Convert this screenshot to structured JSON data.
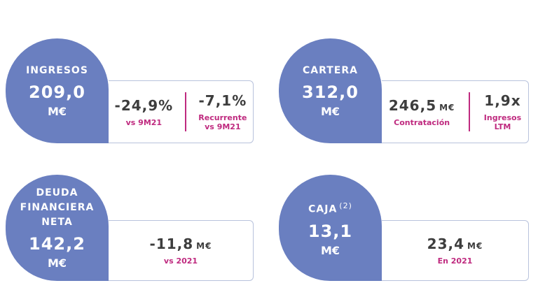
{
  "cards": [
    {
      "title": "INGRESOS",
      "value": "209,0",
      "unit": "M€",
      "metrics": [
        {
          "value": "-24,9%",
          "label": "vs 9M21"
        },
        {
          "value": "-7,1%",
          "label": "Recurrente\nvs 9M21"
        }
      ]
    },
    {
      "title": "CARTERA",
      "value": "312,0",
      "unit": "M€",
      "metrics": [
        {
          "value": "246,5",
          "unit": "M€",
          "label": "Contratación"
        },
        {
          "value": "1,9x",
          "label": "Ingresos\nLTM"
        }
      ]
    },
    {
      "title": "DEUDA\nFINANCIERA\nNETA",
      "value": "142,2",
      "unit": "M€",
      "metrics": [
        {
          "value": "-11,8",
          "unit": "M€",
          "label": "vs 2021"
        }
      ]
    },
    {
      "title": "CAJA",
      "note": "(2)",
      "value": "13,1",
      "unit": "M€",
      "metrics": [
        {
          "value": "23,4",
          "unit": "M€",
          "label": "En 2021"
        }
      ]
    }
  ]
}
